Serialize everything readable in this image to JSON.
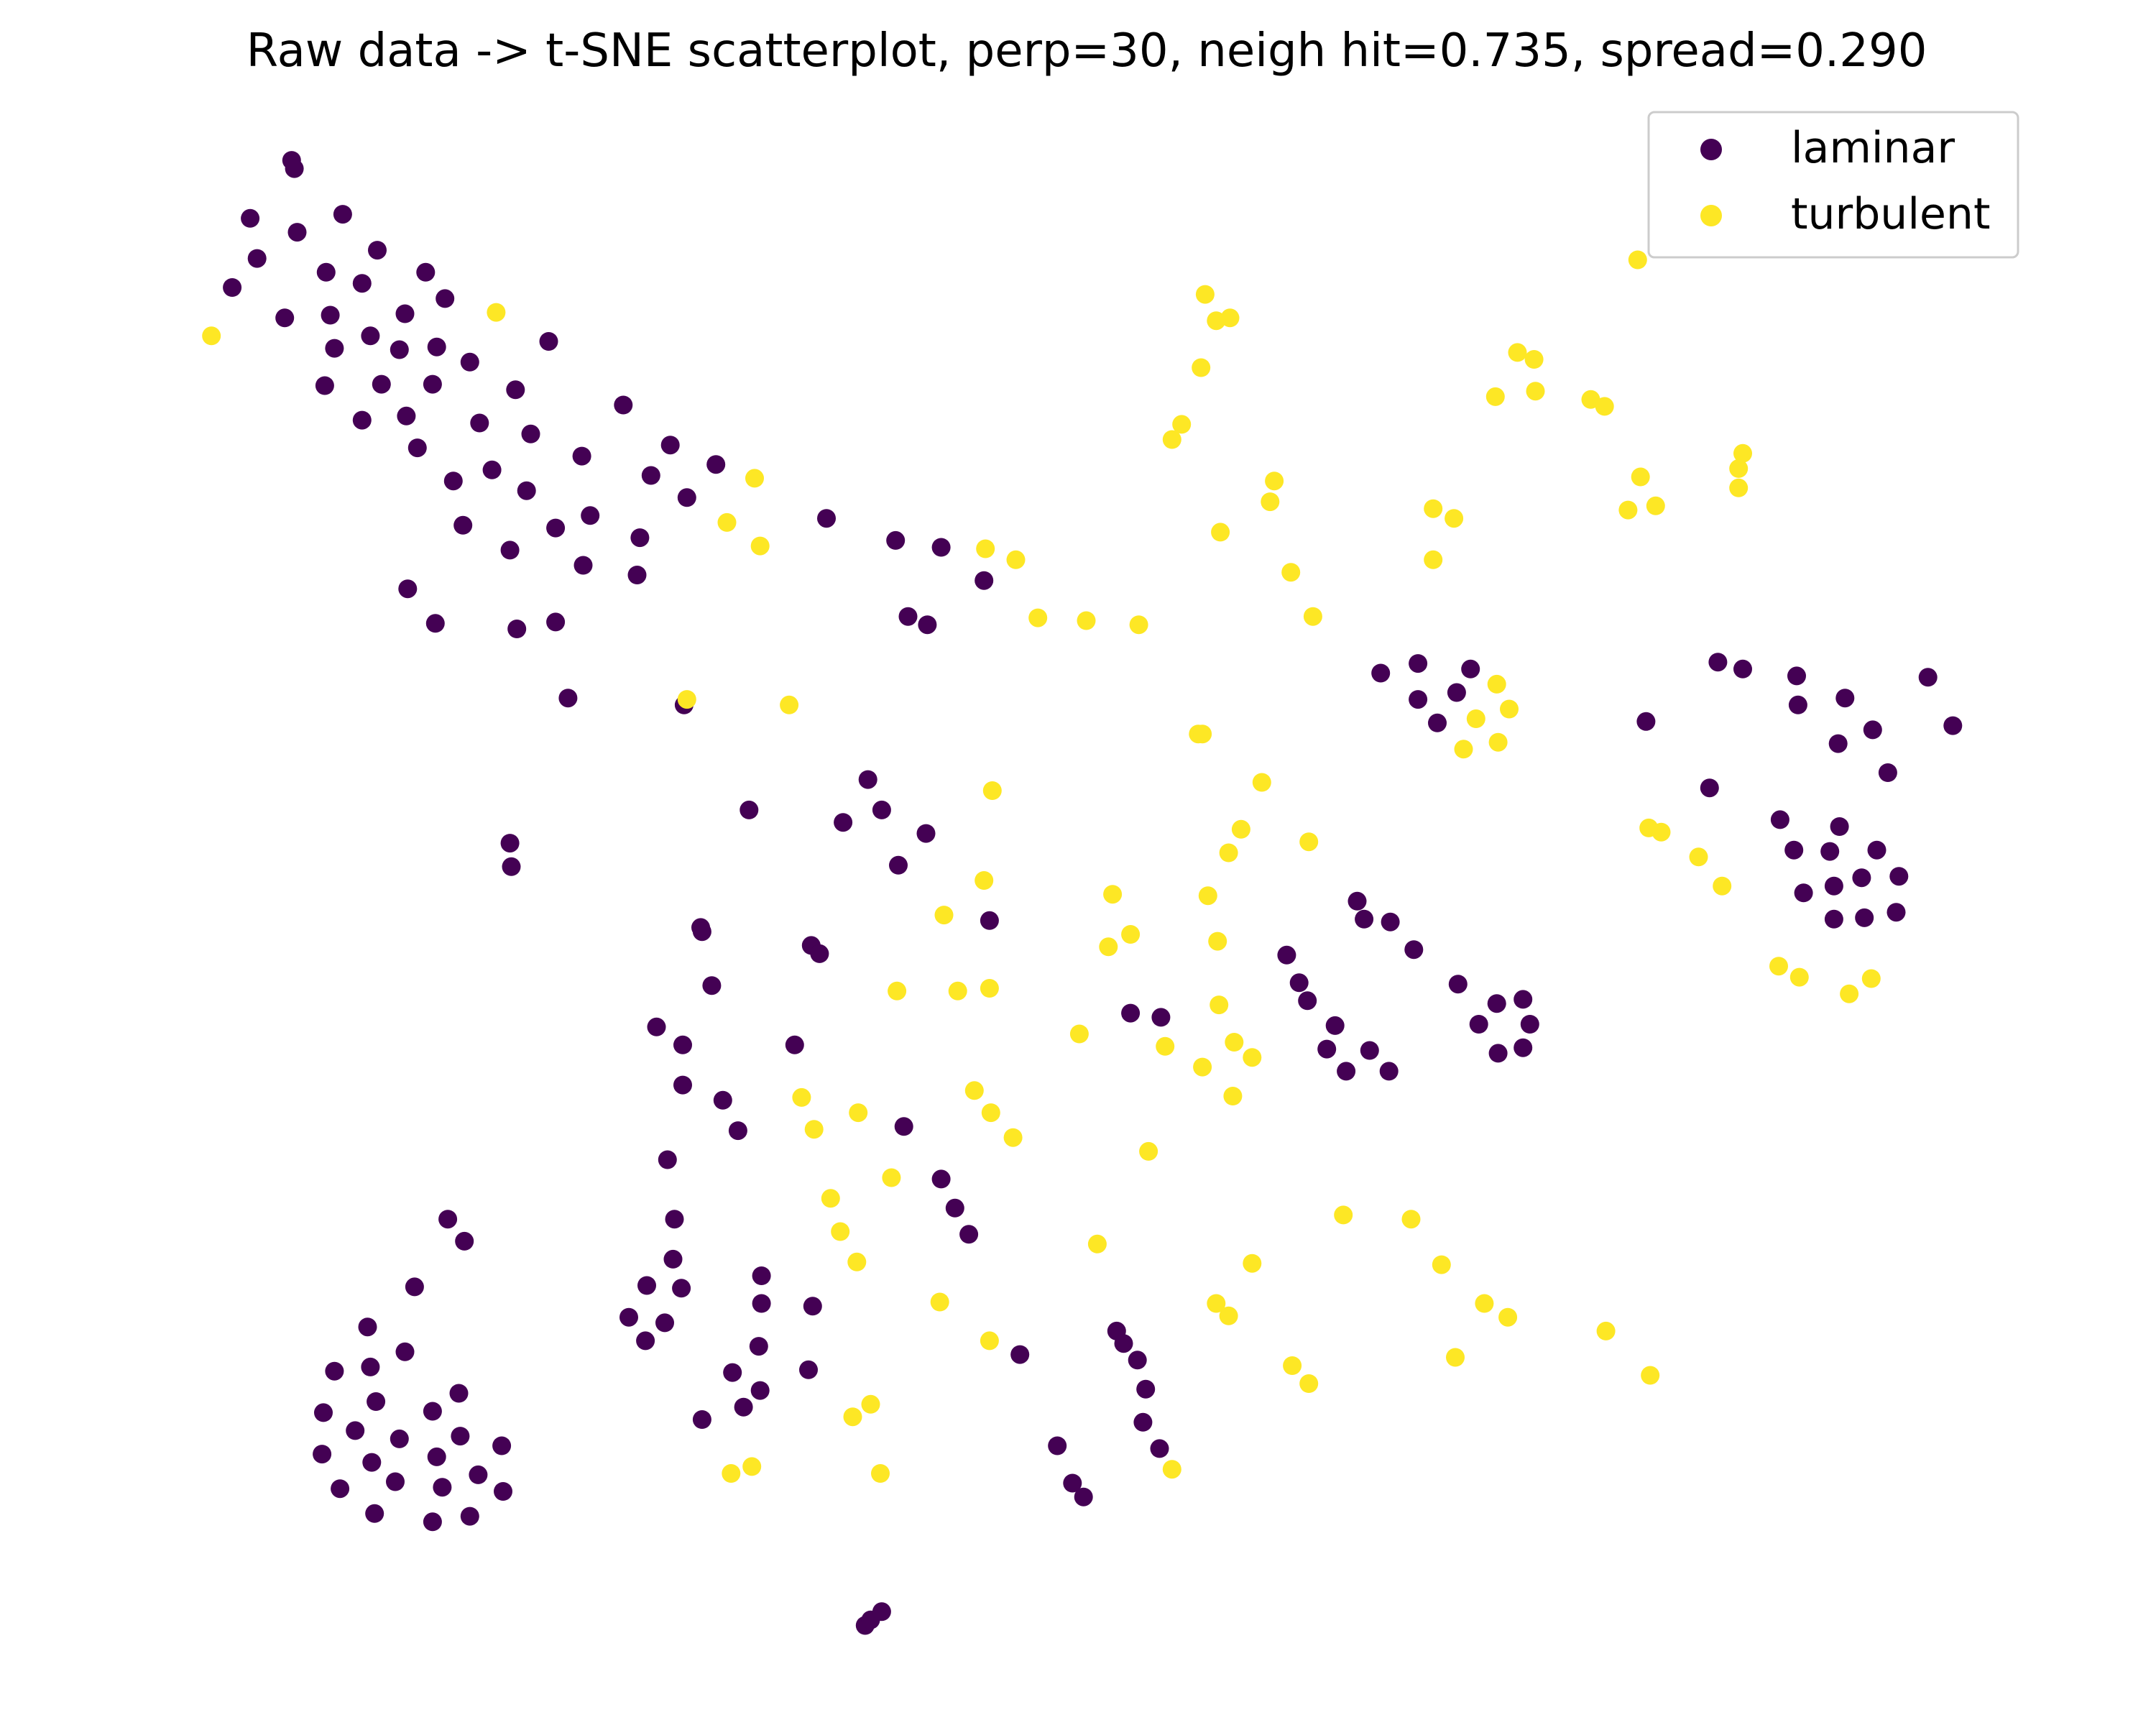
{
  "chart_data": {
    "type": "scatter",
    "title": "Raw data -> t-SNE scatterplot, perp=30, neigh hit=0.735, spread=0.290",
    "axes_visible": false,
    "xlim": [
      0,
      1560
    ],
    "ylim": [
      1240,
      0
    ],
    "legend": {
      "placement": "top-right"
    },
    "colors": {
      "laminar": "#440154",
      "turbulent": "#fde725"
    },
    "series": [
      {
        "name": "laminar",
        "points": [
          [
            211,
            116
          ],
          [
            213,
            122
          ],
          [
            248,
            155
          ],
          [
            181,
            158
          ],
          [
            215,
            168
          ],
          [
            273,
            181
          ],
          [
            186,
            187
          ],
          [
            236,
            197
          ],
          [
            262,
            205
          ],
          [
            308,
            197
          ],
          [
            168,
            208
          ],
          [
            322,
            216
          ],
          [
            206,
            230
          ],
          [
            239,
            228
          ],
          [
            293,
            227
          ],
          [
            268,
            243
          ],
          [
            242,
            252
          ],
          [
            289,
            253
          ],
          [
            316,
            251
          ],
          [
            340,
            262
          ],
          [
            397,
            247
          ],
          [
            235,
            279
          ],
          [
            276,
            278
          ],
          [
            313,
            278
          ],
          [
            373,
            282
          ],
          [
            262,
            304
          ],
          [
            294,
            301
          ],
          [
            347,
            306
          ],
          [
            451,
            293
          ],
          [
            384,
            314
          ],
          [
            302,
            324
          ],
          [
            421,
            330
          ],
          [
            485,
            322
          ],
          [
            518,
            336
          ],
          [
            328,
            348
          ],
          [
            356,
            340
          ],
          [
            471,
            344
          ],
          [
            381,
            355
          ],
          [
            497,
            360
          ],
          [
            335,
            380
          ],
          [
            427,
            373
          ],
          [
            402,
            382
          ],
          [
            463,
            389
          ],
          [
            598,
            375
          ],
          [
            369,
            398
          ],
          [
            422,
            409
          ],
          [
            461,
            416
          ],
          [
            648,
            391
          ],
          [
            681,
            396
          ],
          [
            712,
            420
          ],
          [
            295,
            426
          ],
          [
            315,
            451
          ],
          [
            374,
            455
          ],
          [
            402,
            450
          ],
          [
            657,
            446
          ],
          [
            671,
            452
          ],
          [
            411,
            505
          ],
          [
            495,
            510
          ],
          [
            999,
            487
          ],
          [
            1026,
            480
          ],
          [
            1064,
            484
          ],
          [
            1054,
            501
          ],
          [
            1026,
            506
          ],
          [
            1040,
            523
          ],
          [
            1243,
            479
          ],
          [
            1261,
            484
          ],
          [
            1300,
            489
          ],
          [
            1395,
            490
          ],
          [
            1301,
            510
          ],
          [
            1335,
            505
          ],
          [
            1355,
            528
          ],
          [
            1413,
            525
          ],
          [
            1330,
            538
          ],
          [
            1191,
            522
          ],
          [
            1366,
            559
          ],
          [
            1237,
            570
          ],
          [
            628,
            564
          ],
          [
            542,
            586
          ],
          [
            638,
            586
          ],
          [
            610,
            595
          ],
          [
            670,
            603
          ],
          [
            650,
            626
          ],
          [
            369,
            610
          ],
          [
            370,
            627
          ],
          [
            1288,
            593
          ],
          [
            1331,
            598
          ],
          [
            1298,
            615
          ],
          [
            1324,
            616
          ],
          [
            1358,
            615
          ],
          [
            1374,
            634
          ],
          [
            1347,
            635
          ],
          [
            1305,
            646
          ],
          [
            1327,
            641
          ],
          [
            1372,
            660
          ],
          [
            1349,
            664
          ],
          [
            1327,
            665
          ],
          [
            982,
            652
          ],
          [
            987,
            665
          ],
          [
            1006,
            667
          ],
          [
            716,
            666
          ],
          [
            507,
            671
          ],
          [
            508,
            674
          ],
          [
            1023,
            687
          ],
          [
            587,
            684
          ],
          [
            593,
            690
          ],
          [
            931,
            691
          ],
          [
            515,
            713
          ],
          [
            940,
            711
          ],
          [
            946,
            724
          ],
          [
            1055,
            712
          ],
          [
            1083,
            726
          ],
          [
            1102,
            723
          ],
          [
            818,
            733
          ],
          [
            840,
            736
          ],
          [
            1070,
            741
          ],
          [
            1107,
            741
          ],
          [
            475,
            743
          ],
          [
            494,
            756
          ],
          [
            966,
            742
          ],
          [
            960,
            759
          ],
          [
            991,
            760
          ],
          [
            575,
            756
          ],
          [
            1084,
            762
          ],
          [
            1102,
            758
          ],
          [
            974,
            775
          ],
          [
            1005,
            775
          ],
          [
            494,
            785
          ],
          [
            523,
            796
          ],
          [
            534,
            818
          ],
          [
            654,
            815
          ],
          [
            483,
            839
          ],
          [
            681,
            853
          ],
          [
            691,
            874
          ],
          [
            488,
            882
          ],
          [
            701,
            893
          ],
          [
            324,
            882
          ],
          [
            336,
            898
          ],
          [
            487,
            911
          ],
          [
            300,
            931
          ],
          [
            468,
            930
          ],
          [
            493,
            932
          ],
          [
            551,
            923
          ],
          [
            455,
            953
          ],
          [
            551,
            943
          ],
          [
            588,
            945
          ],
          [
            481,
            957
          ],
          [
            467,
            970
          ],
          [
            266,
            960
          ],
          [
            549,
            974
          ],
          [
            293,
            978
          ],
          [
            808,
            963
          ],
          [
            813,
            972
          ],
          [
            823,
            984
          ],
          [
            738,
            980
          ],
          [
            242,
            992
          ],
          [
            268,
            989
          ],
          [
            530,
            993
          ],
          [
            585,
            991
          ],
          [
            272,
            1014
          ],
          [
            332,
            1008
          ],
          [
            550,
            1006
          ],
          [
            829,
            1005
          ],
          [
            538,
            1018
          ],
          [
            234,
            1022
          ],
          [
            313,
            1021
          ],
          [
            508,
            1027
          ],
          [
            827,
            1029
          ],
          [
            257,
            1035
          ],
          [
            289,
            1041
          ],
          [
            333,
            1039
          ],
          [
            363,
            1046
          ],
          [
            233,
            1052
          ],
          [
            269,
            1058
          ],
          [
            316,
            1054
          ],
          [
            839,
            1048
          ],
          [
            765,
            1046
          ],
          [
            346,
            1067
          ],
          [
            246,
            1077
          ],
          [
            286,
            1072
          ],
          [
            320,
            1076
          ],
          [
            364,
            1079
          ],
          [
            776,
            1073
          ],
          [
            784,
            1083
          ],
          [
            271,
            1095
          ],
          [
            313,
            1101
          ],
          [
            340,
            1097
          ],
          [
            626,
            1176
          ],
          [
            630,
            1172
          ],
          [
            638,
            1166
          ]
        ]
      },
      {
        "name": "turbulent",
        "points": [
          [
            153,
            243
          ],
          [
            359,
            226
          ],
          [
            1185,
            188
          ],
          [
            872,
            213
          ],
          [
            890,
            230
          ],
          [
            880,
            232
          ],
          [
            869,
            266
          ],
          [
            1098,
            255
          ],
          [
            1110,
            260
          ],
          [
            855,
            307
          ],
          [
            848,
            318
          ],
          [
            1082,
            287
          ],
          [
            1111,
            283
          ],
          [
            1151,
            289
          ],
          [
            1161,
            294
          ],
          [
            1261,
            328
          ],
          [
            1258,
            339
          ],
          [
            1187,
            345
          ],
          [
            1258,
            353
          ],
          [
            546,
            346
          ],
          [
            526,
            378
          ],
          [
            550,
            395
          ],
          [
            922,
            348
          ],
          [
            919,
            363
          ],
          [
            1037,
            368
          ],
          [
            1052,
            375
          ],
          [
            1178,
            369
          ],
          [
            1198,
            366
          ],
          [
            883,
            385
          ],
          [
            1037,
            405
          ],
          [
            713,
            397
          ],
          [
            735,
            405
          ],
          [
            934,
            414
          ],
          [
            950,
            446
          ],
          [
            751,
            447
          ],
          [
            786,
            449
          ],
          [
            824,
            452
          ],
          [
            1083,
            495
          ],
          [
            1092,
            513
          ],
          [
            1068,
            520
          ],
          [
            1084,
            537
          ],
          [
            1059,
            542
          ],
          [
            497,
            506
          ],
          [
            571,
            510
          ],
          [
            867,
            531
          ],
          [
            870,
            531
          ],
          [
            913,
            566
          ],
          [
            718,
            572
          ],
          [
            898,
            600
          ],
          [
            1193,
            599
          ],
          [
            1202,
            602
          ],
          [
            889,
            617
          ],
          [
            947,
            609
          ],
          [
            1229,
            620
          ],
          [
            1246,
            641
          ],
          [
            712,
            637
          ],
          [
            805,
            647
          ],
          [
            874,
            648
          ],
          [
            683,
            662
          ],
          [
            818,
            676
          ],
          [
            802,
            685
          ],
          [
            881,
            681
          ],
          [
            1287,
            699
          ],
          [
            1302,
            707
          ],
          [
            1338,
            719
          ],
          [
            1354,
            708
          ],
          [
            649,
            717
          ],
          [
            693,
            717
          ],
          [
            716,
            715
          ],
          [
            882,
            727
          ],
          [
            781,
            748
          ],
          [
            893,
            754
          ],
          [
            843,
            757
          ],
          [
            906,
            765
          ],
          [
            870,
            772
          ],
          [
            705,
            789
          ],
          [
            580,
            794
          ],
          [
            892,
            793
          ],
          [
            621,
            805
          ],
          [
            717,
            805
          ],
          [
            589,
            817
          ],
          [
            733,
            823
          ],
          [
            831,
            833
          ],
          [
            645,
            852
          ],
          [
            601,
            867
          ],
          [
            972,
            879
          ],
          [
            1021,
            882
          ],
          [
            608,
            891
          ],
          [
            794,
            900
          ],
          [
            620,
            913
          ],
          [
            906,
            914
          ],
          [
            1043,
            915
          ],
          [
            680,
            942
          ],
          [
            880,
            943
          ],
          [
            889,
            952
          ],
          [
            1074,
            943
          ],
          [
            1091,
            953
          ],
          [
            716,
            970
          ],
          [
            1162,
            963
          ],
          [
            935,
            988
          ],
          [
            1053,
            982
          ],
          [
            947,
            1001
          ],
          [
            1194,
            995
          ],
          [
            630,
            1016
          ],
          [
            617,
            1025
          ],
          [
            544,
            1061
          ],
          [
            529,
            1066
          ],
          [
            637,
            1066
          ],
          [
            848,
            1063
          ]
        ]
      }
    ]
  }
}
